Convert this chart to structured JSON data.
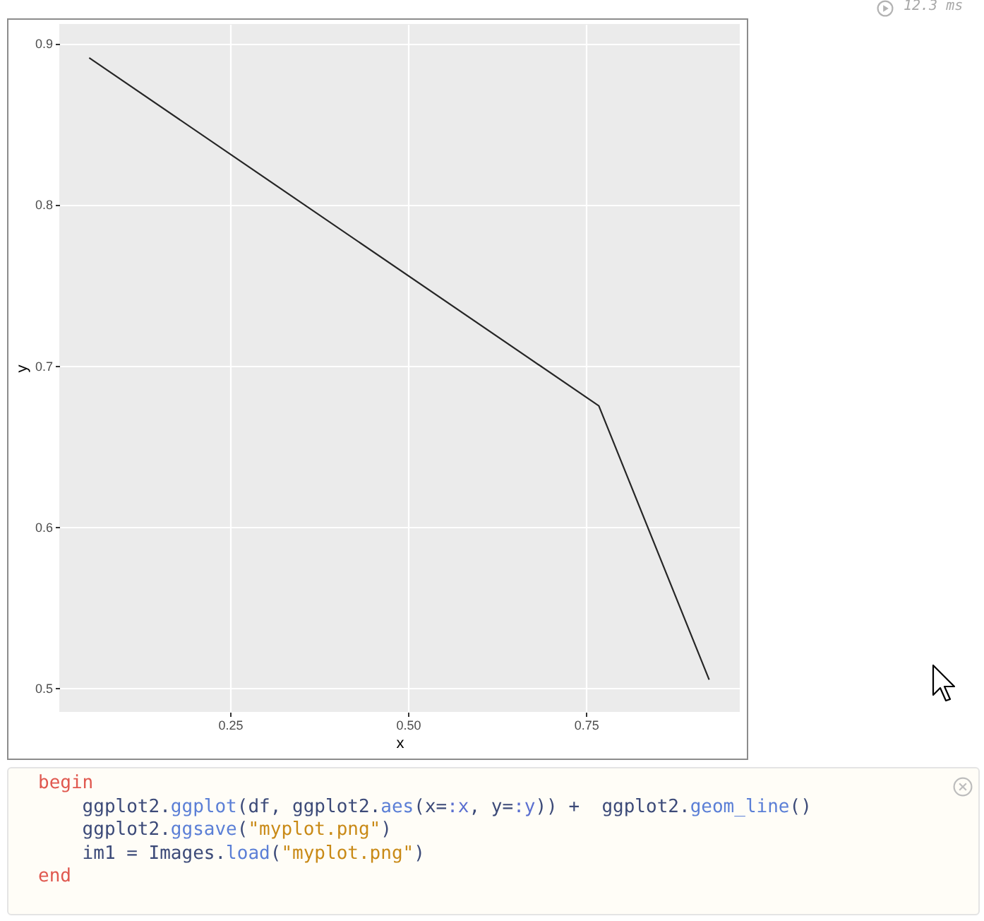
{
  "chart_data": {
    "type": "line",
    "xlabel": "x",
    "ylabel": "y",
    "x": [
      0.052,
      0.768,
      0.923
    ],
    "series": [
      {
        "color": "#262626",
        "values": [
          0.891,
          0.675,
          0.505
        ]
      }
    ],
    "xlim": [
      0.01,
      0.966
    ],
    "ylim": [
      0.485,
      0.912
    ],
    "xticks": [
      0.25,
      {
        "value": 0.5,
        "label": "0.50"
      },
      0.75
    ],
    "yticks": [
      0.5,
      0.6,
      0.7,
      0.8,
      0.9
    ],
    "grid": true,
    "annotations": [
      "12.3 ms",
      "begin",
      "    ggplot2.ggplot(df, ggplot2.aes(x=:x, y=:y)) +  ggplot2.geom_line()",
      "    ggplot2.ggsave(\"myplot.png\")",
      "    im1 = Images.load(\"myplot.png\")",
      "end"
    ]
  }
}
